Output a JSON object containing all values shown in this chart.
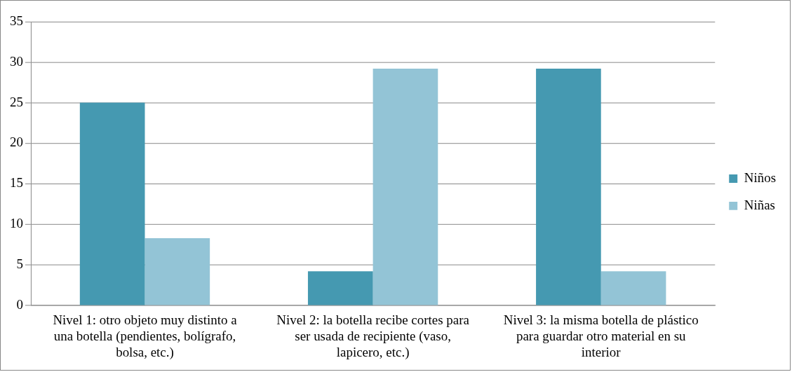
{
  "chart_data": {
    "type": "bar",
    "categories": [
      "Nivel 1: otro objeto muy distinto a una botella (pendientes, bolígrafo, bolsa, etc.)",
      "Nivel 2: la botella recibe cortes para ser usada de recipiente (vaso, lapicero, etc.)",
      "Nivel 3: la misma botella de plástico para guardar otro material en su interior"
    ],
    "series": [
      {
        "name": "Niños",
        "color": "#4599b1",
        "values": [
          25,
          4.2,
          29.2
        ]
      },
      {
        "name": "Niñas",
        "color": "#93c4d6",
        "values": [
          8.3,
          29.2,
          4.2
        ]
      }
    ],
    "ylim": [
      0,
      35
    ],
    "yticks": [
      0,
      5,
      10,
      15,
      20,
      25,
      30,
      35
    ],
    "grid": "y",
    "legend": "right"
  }
}
